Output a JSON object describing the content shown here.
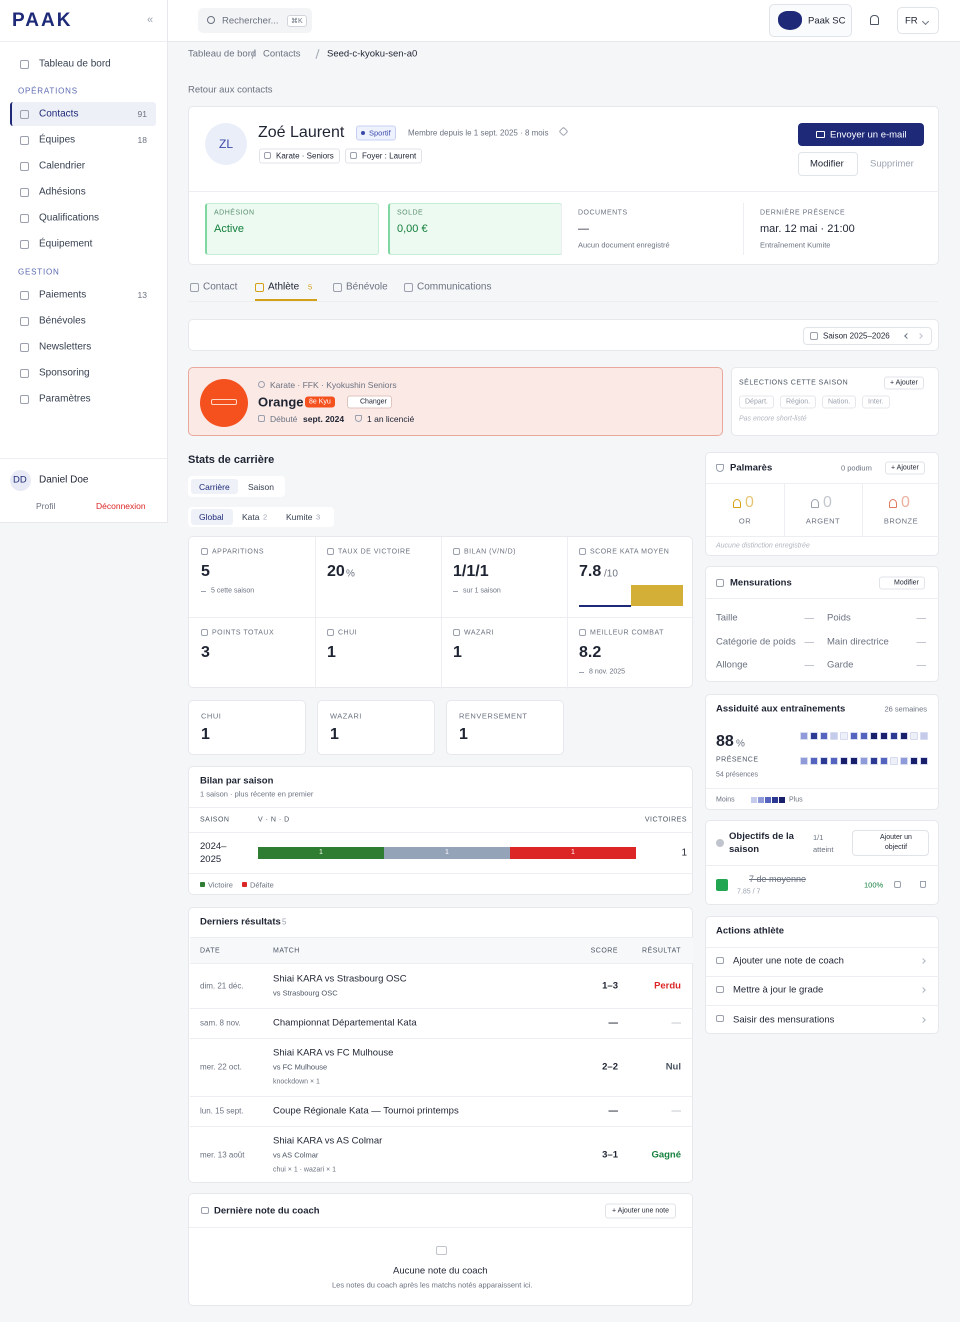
{
  "sidebar": {
    "logo": "PAAK",
    "collapse": "«",
    "home": "Tableau de bord",
    "sections": [
      {
        "title": "OPÉRATIONS",
        "items": [
          {
            "label": "Contacts",
            "count": 91
          },
          {
            "label": "Équipes",
            "count": 18
          },
          {
            "label": "Calendrier"
          },
          {
            "label": "Adhésions"
          },
          {
            "label": "Qualifications"
          },
          {
            "label": "Équipement"
          }
        ]
      },
      {
        "title": "GESTION",
        "items": [
          {
            "label": "Paiements",
            "count": 13
          },
          {
            "label": "Bénévoles"
          },
          {
            "label": "Newsletters"
          },
          {
            "label": "Sponsoring"
          },
          {
            "label": "Paramètres"
          }
        ]
      }
    ],
    "user": {
      "initials": "DD",
      "name": "Daniel Doe",
      "profile": "Profil",
      "logout": "Déconnexion"
    }
  },
  "topbar": {
    "search": "Rechercher...",
    "shortcut": "⌘K",
    "club": "Paak SC",
    "lang": "FR"
  },
  "breadcrumb": [
    "Tableau de bord",
    "Contacts",
    "Seed-c-kyoku-sen-a0"
  ],
  "back": "Retour aux contacts",
  "profile": {
    "initials": "ZL",
    "name": "Zoé Laurent",
    "badge": "Sportif",
    "member": "Membre depuis le 1 sept. 2025 · 8 mois",
    "tags": [
      "Karate · Seniors",
      "Foyer : Laurent"
    ],
    "email": "Envoyer un e-mail",
    "edit": "Modifier",
    "delete": "Supprimer"
  },
  "summary": [
    {
      "label": "ADHÉSION",
      "value": "Active"
    },
    {
      "label": "SOLDE",
      "value": "0,00 €"
    },
    {
      "label": "DOCUMENTS",
      "value": "—",
      "note": "Aucun document enregistré"
    },
    {
      "label": "DERNIÈRE PRÉSENCE",
      "value": "mar. 12 mai · 21:00",
      "note": "Entraînement Kumite"
    }
  ],
  "tabs": [
    {
      "label": "Contact"
    },
    {
      "label": "Athlète",
      "count": 5
    },
    {
      "label": "Bénévole"
    },
    {
      "label": "Communications"
    }
  ],
  "season": "Saison 2025–2026",
  "grade": {
    "discipline": "Karate · FFK · Kyokushin Seniors",
    "belt": "Orange",
    "kyu": "8e Kyu",
    "change": "Changer",
    "started_label": "Débuté",
    "started": "sept. 2024",
    "licensed": "1 an licencié"
  },
  "selections": {
    "title": "SÉLECTIONS CETTE SAISON",
    "add": "+ Ajouter",
    "levels": [
      "Départ.",
      "Région.",
      "Nation.",
      "Inter."
    ],
    "note": "Pas encore short-listé"
  },
  "career": {
    "title": "Stats de carrière",
    "modes": [
      "Carrière",
      "Saison"
    ],
    "filters": [
      {
        "label": "Global"
      },
      {
        "label": "Kata",
        "count": 2
      },
      {
        "label": "Kumite",
        "count": 3
      }
    ],
    "stats": [
      {
        "label": "APPARITIONS",
        "value": "5",
        "note": "5 cette saison"
      },
      {
        "label": "TAUX DE VICTOIRE",
        "value": "20",
        "unit": "%"
      },
      {
        "label": "BILAN (V/N/D)",
        "value": "1/1/1",
        "note": "sur 1 saison"
      },
      {
        "label": "SCORE KATA MOYEN",
        "value": "7.8",
        "unit": "/10"
      },
      {
        "label": "POINTS TOTAUX",
        "value": "3"
      },
      {
        "label": "CHUI",
        "value": "1"
      },
      {
        "label": "WAZARI",
        "value": "1"
      },
      {
        "label": "MEILLEUR COMBAT",
        "value": "8.2",
        "note": "8 nov. 2025"
      }
    ],
    "scores": [
      {
        "label": "CHUI",
        "value": "1"
      },
      {
        "label": "WAZARI",
        "value": "1"
      },
      {
        "label": "RENVERSEMENT",
        "value": "1"
      }
    ]
  },
  "seasons": {
    "title": "Bilan par saison",
    "subtitle": "1 saison · plus récente en premier",
    "headers": [
      "SAISON",
      "V · N · D",
      "VICTOIRES"
    ],
    "rows": [
      {
        "season": "2024–2025",
        "segments": [
          {
            "value": 1,
            "color": "#2e7d32"
          },
          {
            "value": 1,
            "color": "#94a3b8"
          },
          {
            "value": 1,
            "color": "#dc2626"
          }
        ],
        "victories": 1
      }
    ],
    "legend": [
      {
        "label": "Victoire",
        "color": "#2e7d32"
      },
      {
        "label": "Défaite",
        "color": "#dc2626"
      }
    ]
  },
  "results": {
    "title": "Derniers résultats",
    "count": 5,
    "headers": [
      "DATE",
      "MATCH",
      "SCORE",
      "RÉSULTAT"
    ],
    "rows": [
      {
        "date": "dim. 21 déc.",
        "match": "Shiai KARA vs Strasbourg OSC",
        "opponent": "vs Strasbourg OSC",
        "score": "1–3",
        "result": "Perdu",
        "color": "#dc2626"
      },
      {
        "date": "sam. 8 nov.",
        "match": "Championnat Départemental Kata",
        "score": "—",
        "result": "—",
        "color": "#c0c4cc"
      },
      {
        "date": "mer. 22 oct.",
        "match": "Shiai KARA vs FC Mulhouse",
        "opponent": "vs FC Mulhouse",
        "detail": "knockdown × 1",
        "score": "2–2",
        "result": "Nul",
        "color": "#4b5563"
      },
      {
        "date": "lun. 15 sept.",
        "match": "Coupe Régionale Kata — Tournoi printemps",
        "score": "—",
        "result": "—",
        "color": "#c0c4cc"
      },
      {
        "date": "mer. 13 août",
        "match": "Shiai KARA vs AS Colmar",
        "opponent": "vs AS Colmar",
        "detail": "chui × 1 · wazari × 1",
        "score": "3–1",
        "result": "Gagné",
        "color": "#15803d"
      }
    ]
  },
  "coach": {
    "title": "Dernière note du coach",
    "add": "+ Ajouter une note",
    "empty": "Aucune note du coach",
    "hint": "Les notes du coach après les matchs notés apparaissent ici."
  },
  "palmares": {
    "title": "Palmarès",
    "podium": "0 podium",
    "add": "+ Ajouter",
    "medals": [
      {
        "label": "OR",
        "count": 0,
        "color": "#d4a017"
      },
      {
        "label": "ARGENT",
        "count": 0,
        "color": "#9ca3af"
      },
      {
        "label": "BRONZE",
        "count": 0,
        "color": "#e07b5f"
      }
    ],
    "note": "Aucune distinction enregistrée"
  },
  "measures": {
    "title": "Mensurations",
    "edit": "Modifier",
    "rows": [
      {
        "label": "Taille",
        "value": "—"
      },
      {
        "label": "Poids",
        "value": "—"
      },
      {
        "label": "Catégorie de poids",
        "value": "—"
      },
      {
        "label": "Main directrice",
        "value": "—"
      },
      {
        "label": "Allonge",
        "value": "—"
      },
      {
        "label": "Garde",
        "value": "—"
      }
    ]
  },
  "attendance": {
    "title": "Assiduité aux entraînements",
    "period": "26 semaines",
    "rate": "88",
    "unit": "%",
    "label": "PRÉSENCE",
    "count": "54 présences",
    "less": "Moins",
    "more": "Plus",
    "weeks": [
      2,
      4,
      3,
      1,
      0,
      3,
      3,
      5,
      5,
      4,
      5,
      0,
      1,
      2,
      3,
      4,
      3,
      5,
      5,
      2,
      4,
      3,
      0,
      2,
      5,
      5
    ]
  },
  "goals": {
    "title": "Objectifs de la saison",
    "status": "1/1 atteint",
    "add": "Ajouter un objectif",
    "items": [
      {
        "name": "7 de moyenne",
        "progress": "7.85 / 7",
        "percent": "100%"
      }
    ]
  },
  "actions": {
    "title": "Actions athlète",
    "items": [
      "Ajouter une note de coach",
      "Mettre à jour le grade",
      "Saisir des mensurations"
    ]
  }
}
